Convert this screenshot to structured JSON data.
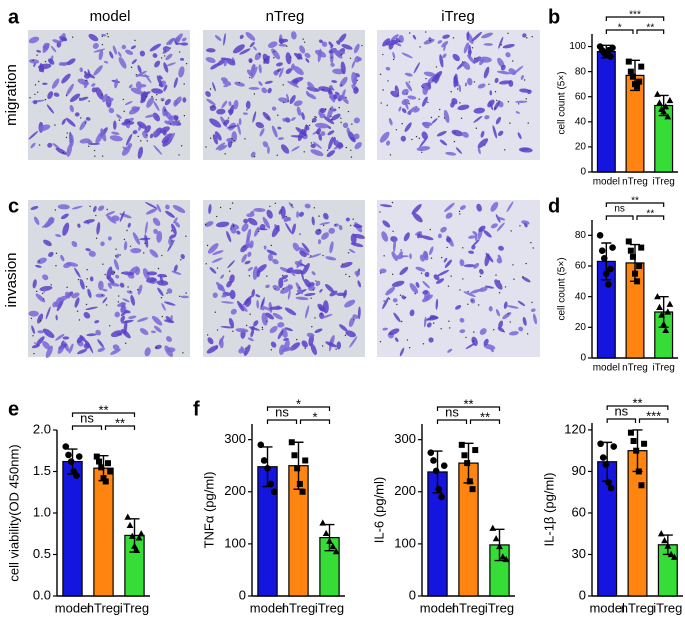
{
  "figure": {
    "panel_labels": [
      "a",
      "b",
      "c",
      "d",
      "e",
      "f"
    ],
    "image_columns": [
      "model",
      "nTreg",
      "iTreg"
    ],
    "image_rows": [
      "migration",
      "invasion"
    ]
  },
  "chart_data": [
    {
      "type": "bar",
      "ylabel": "cell count (5×)",
      "categories": [
        "model",
        "nTreg",
        "iTreg"
      ],
      "colors": [
        "#1515e0",
        "#ff8510",
        "#36dd36"
      ],
      "values": [
        96,
        77,
        53
      ],
      "errors": [
        5,
        12,
        8
      ],
      "points": [
        [
          100,
          97,
          95,
          93,
          97,
          92,
          99
        ],
        [
          88,
          80,
          76,
          70,
          68,
          72,
          84
        ],
        [
          62,
          55,
          50,
          48,
          52,
          44,
          57
        ]
      ],
      "ylim": [
        0,
        110
      ],
      "yticks": [
        0,
        20,
        40,
        60,
        80,
        100
      ],
      "annotations": [
        {
          "from": "model",
          "to": "iTreg",
          "text": "***"
        },
        {
          "from": "model",
          "to": "nTreg",
          "text": "*"
        },
        {
          "from": "nTreg",
          "to": "iTreg",
          "text": "**"
        }
      ]
    },
    {
      "type": "bar",
      "ylabel": "cell count (5×)",
      "categories": [
        "model",
        "nTreg",
        "iTreg"
      ],
      "colors": [
        "#1515e0",
        "#ff8510",
        "#36dd36"
      ],
      "values": [
        63,
        62,
        30
      ],
      "errors": [
        12,
        12,
        10
      ],
      "points": [
        [
          80,
          70,
          65,
          55,
          48,
          58,
          72
        ],
        [
          76,
          70,
          66,
          55,
          50,
          60,
          72
        ],
        [
          40,
          33,
          28,
          22,
          18,
          30,
          35
        ]
      ],
      "ylim": [
        0,
        90
      ],
      "yticks": [
        0,
        20,
        40,
        60,
        80
      ],
      "annotations": [
        {
          "from": "model",
          "to": "iTreg",
          "text": "**"
        },
        {
          "from": "model",
          "to": "nTreg",
          "text": "ns"
        },
        {
          "from": "nTreg",
          "to": "iTreg",
          "text": "**"
        }
      ]
    },
    {
      "type": "bar",
      "ylabel": "cell viability(OD 450nm)",
      "categories": [
        "model",
        "nTreg",
        "iTreg"
      ],
      "colors": [
        "#1515e0",
        "#ff8510",
        "#36dd36"
      ],
      "values": [
        1.62,
        1.54,
        0.73
      ],
      "errors": [
        0.15,
        0.15,
        0.2
      ],
      "points": [
        [
          1.8,
          1.7,
          1.62,
          1.5,
          1.45,
          1.68
        ],
        [
          1.68,
          1.62,
          1.55,
          1.42,
          1.38,
          1.6,
          1.5
        ],
        [
          0.95,
          0.85,
          0.72,
          0.6,
          0.55,
          0.7,
          0.75
        ]
      ],
      "ylim": [
        0,
        2.0
      ],
      "yticks": [
        {
          "value": 0,
          "label": "0.0"
        },
        {
          "value": 0.5,
          "label": "0.5"
        },
        {
          "value": 1.0,
          "label": "1.0"
        },
        {
          "value": 1.5,
          "label": "1.5"
        },
        {
          "value": 2.0,
          "label": "2.0"
        }
      ],
      "annotations": [
        {
          "from": "model",
          "to": "iTreg",
          "text": "**"
        },
        {
          "from": "model",
          "to": "nTreg",
          "text": "ns"
        },
        {
          "from": "nTreg",
          "to": "iTreg",
          "text": "**"
        }
      ]
    },
    {
      "type": "bar",
      "ylabel": "TNFα  (pg/ml)",
      "categories": [
        "model",
        "nTreg",
        "iTreg"
      ],
      "colors": [
        "#1515e0",
        "#ff8510",
        "#36dd36"
      ],
      "values": [
        248,
        250,
        112
      ],
      "errors": [
        38,
        45,
        25
      ],
      "points": [
        [
          290,
          260,
          245,
          215,
          200
        ],
        [
          295,
          270,
          245,
          215,
          200,
          260
        ],
        [
          140,
          120,
          105,
          95,
          85
        ]
      ],
      "ylim": [
        0,
        330
      ],
      "yticks": [
        0,
        100,
        200,
        300
      ],
      "annotations": [
        {
          "from": "model",
          "to": "iTreg",
          "text": "*"
        },
        {
          "from": "model",
          "to": "nTreg",
          "text": "ns"
        },
        {
          "from": "nTreg",
          "to": "iTreg",
          "text": "*"
        }
      ]
    },
    {
      "type": "bar",
      "ylabel": "IL-6 (pg/ml)",
      "categories": [
        "model",
        "nTreg",
        "iTreg"
      ],
      "colors": [
        "#1515e0",
        "#ff8510",
        "#36dd36"
      ],
      "values": [
        238,
        255,
        98
      ],
      "errors": [
        40,
        38,
        30
      ],
      "points": [
        [
          275,
          260,
          240,
          205,
          190,
          250
        ],
        [
          290,
          270,
          255,
          220,
          205,
          280
        ],
        [
          130,
          110,
          95,
          75,
          70
        ]
      ],
      "ylim": [
        0,
        330
      ],
      "yticks": [
        0,
        100,
        200,
        300
      ],
      "annotations": [
        {
          "from": "model",
          "to": "iTreg",
          "text": "**"
        },
        {
          "from": "model",
          "to": "nTreg",
          "text": "ns"
        },
        {
          "from": "nTreg",
          "to": "iTreg",
          "text": "**"
        }
      ]
    },
    {
      "type": "bar",
      "ylabel": "IL-1β (pg/ml)",
      "categories": [
        "model",
        "nTreg",
        "iTreg"
      ],
      "colors": [
        "#1515e0",
        "#ff8510",
        "#36dd36"
      ],
      "values": [
        97,
        105,
        37
      ],
      "errors": [
        14,
        15,
        7
      ],
      "points": [
        [
          110,
          100,
          95,
          82,
          78,
          108
        ],
        [
          118,
          112,
          105,
          90,
          80,
          110
        ],
        [
          45,
          40,
          36,
          30,
          28
        ]
      ],
      "ylim": [
        0,
        125
      ],
      "yticks": [
        0,
        30,
        60,
        90,
        120
      ],
      "annotations": [
        {
          "from": "model",
          "to": "iTreg",
          "text": "**"
        },
        {
          "from": "model",
          "to": "nTreg",
          "text": "ns"
        },
        {
          "from": "nTreg",
          "to": "iTreg",
          "text": "***"
        }
      ]
    }
  ]
}
